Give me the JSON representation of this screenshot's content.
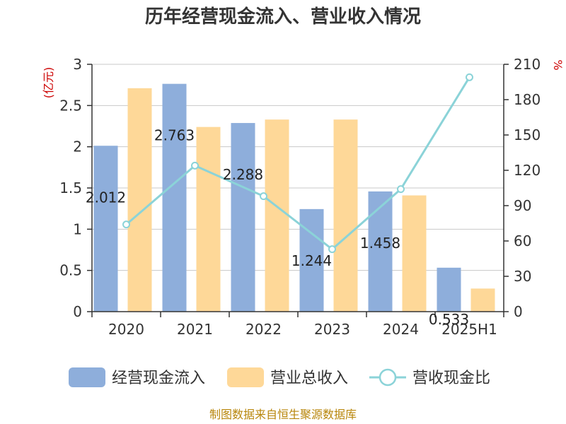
{
  "chart_data": {
    "type": "bar",
    "title": "历年经营现金流入、营业收入情况",
    "categories": [
      "2020",
      "2021",
      "2022",
      "2023",
      "2024",
      "2025H1"
    ],
    "series": [
      {
        "name": "经营现金流入",
        "kind": "bar",
        "axis": "left",
        "color": "#8eaedb",
        "values": [
          2.012,
          2.763,
          2.288,
          1.244,
          1.458,
          0.533
        ],
        "labels": [
          "2.012",
          "2.763",
          "2.288",
          "1.244",
          "1.458",
          "0.533"
        ]
      },
      {
        "name": "营业总收入",
        "kind": "bar",
        "axis": "left",
        "color": "#fed898",
        "values": [
          2.71,
          2.24,
          2.33,
          2.33,
          1.41,
          0.28
        ]
      },
      {
        "name": "营收现金比",
        "kind": "line",
        "axis": "right",
        "color": "#8bd3d8",
        "values": [
          74,
          124,
          98,
          53,
          104,
          199
        ]
      }
    ],
    "y_left": {
      "unit": "(亿元)",
      "min": 0,
      "max": 3,
      "ticks": [
        "0",
        "0.5",
        "1",
        "1.5",
        "2",
        "2.5",
        "3"
      ],
      "tick_values": [
        0,
        0.5,
        1,
        1.5,
        2,
        2.5,
        3
      ]
    },
    "y_right": {
      "unit": "%",
      "min": 0,
      "max": 210,
      "ticks": [
        "0",
        "30",
        "60",
        "90",
        "120",
        "150",
        "180",
        "210"
      ],
      "tick_values": [
        0,
        30,
        60,
        90,
        120,
        150,
        180,
        210
      ]
    },
    "grid": true,
    "legend_position": "bottom"
  },
  "source": "制图数据来自恒生聚源数据库"
}
